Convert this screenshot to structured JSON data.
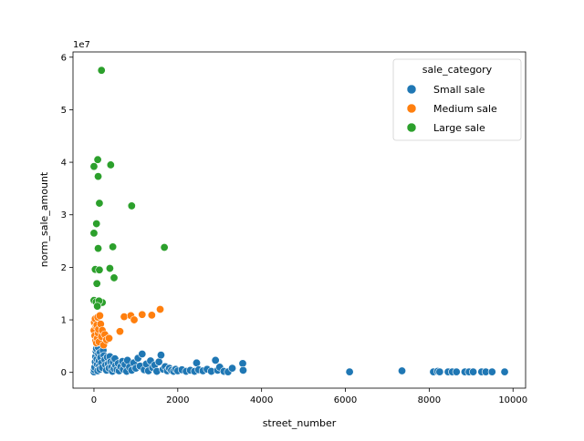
{
  "chart_data": {
    "type": "scatter",
    "xlabel": "street_number",
    "ylabel": "norm_sale_amount",
    "y_scale_label": "1e7",
    "xlim": [
      -500,
      10300
    ],
    "ylim": [
      -3.0,
      61.0
    ],
    "x_ticks": [
      0,
      2000,
      4000,
      6000,
      8000,
      10000
    ],
    "x_tick_labels": [
      "0",
      "2000",
      "4000",
      "6000",
      "8000",
      "10000"
    ],
    "y_ticks": [
      0,
      10,
      20,
      30,
      40,
      50,
      60
    ],
    "y_tick_labels": [
      "0",
      "1",
      "2",
      "3",
      "4",
      "5",
      "6"
    ],
    "grid": false,
    "legend": {
      "title": "sale_category",
      "placement": "top-right",
      "entries": [
        "Small sale",
        "Medium sale",
        "Large sale"
      ]
    },
    "series": [
      {
        "name": "Small sale",
        "color": "#1f77b4",
        "points": [
          [
            0,
            0.1
          ],
          [
            10,
            0.5
          ],
          [
            20,
            1.0
          ],
          [
            30,
            2.0
          ],
          [
            40,
            3.0
          ],
          [
            50,
            4.0
          ],
          [
            60,
            4.5
          ],
          [
            70,
            2.5
          ],
          [
            80,
            1.5
          ],
          [
            90,
            0.3
          ],
          [
            100,
            4.8
          ],
          [
            110,
            3.5
          ],
          [
            120,
            2.2
          ],
          [
            130,
            1.2
          ],
          [
            140,
            0.6
          ],
          [
            150,
            3.8
          ],
          [
            160,
            2.8
          ],
          [
            180,
            1.8
          ],
          [
            200,
            0.9
          ],
          [
            220,
            4.2
          ],
          [
            240,
            3.2
          ],
          [
            260,
            2.4
          ],
          [
            280,
            1.4
          ],
          [
            300,
            0.4
          ],
          [
            320,
            2.9
          ],
          [
            340,
            1.6
          ],
          [
            360,
            0.8
          ],
          [
            380,
            3.0
          ],
          [
            400,
            2.0
          ],
          [
            420,
            1.0
          ],
          [
            440,
            0.2
          ],
          [
            460,
            1.9
          ],
          [
            480,
            0.7
          ],
          [
            500,
            2.6
          ],
          [
            520,
            1.3
          ],
          [
            550,
            0.5
          ],
          [
            580,
            1.7
          ],
          [
            600,
            0.3
          ],
          [
            640,
            1.1
          ],
          [
            680,
            2.1
          ],
          [
            700,
            0.6
          ],
          [
            740,
            1.5
          ],
          [
            780,
            0.2
          ],
          [
            800,
            2.3
          ],
          [
            850,
            1.0
          ],
          [
            900,
            0.4
          ],
          [
            950,
            1.8
          ],
          [
            1000,
            0.8
          ],
          [
            1050,
            2.7
          ],
          [
            1100,
            1.2
          ],
          [
            1150,
            3.5
          ],
          [
            1200,
            0.5
          ],
          [
            1250,
            1.6
          ],
          [
            1300,
            0.3
          ],
          [
            1350,
            2.2
          ],
          [
            1400,
            0.9
          ],
          [
            1450,
            1.4
          ],
          [
            1500,
            0.2
          ],
          [
            1550,
            2.0
          ],
          [
            1600,
            3.3
          ],
          [
            1650,
            0.6
          ],
          [
            1700,
            1.1
          ],
          [
            1750,
            0.3
          ],
          [
            1800,
            0.8
          ],
          [
            1850,
            0.4
          ],
          [
            1900,
            0.2
          ],
          [
            1950,
            0.6
          ],
          [
            2000,
            0.3
          ],
          [
            2100,
            0.5
          ],
          [
            2200,
            0.2
          ],
          [
            2300,
            0.4
          ],
          [
            2400,
            0.2
          ],
          [
            2450,
            1.8
          ],
          [
            2500,
            0.5
          ],
          [
            2600,
            0.3
          ],
          [
            2700,
            0.6
          ],
          [
            2800,
            0.2
          ],
          [
            2900,
            2.3
          ],
          [
            2950,
            0.4
          ],
          [
            3000,
            1.0
          ],
          [
            3100,
            0.2
          ],
          [
            3200,
            0.1
          ],
          [
            3300,
            0.8
          ],
          [
            3550,
            1.7
          ],
          [
            3560,
            0.4
          ],
          [
            6100,
            0.1
          ],
          [
            7350,
            0.3
          ],
          [
            8100,
            0.1
          ],
          [
            8200,
            0.2
          ],
          [
            8250,
            0.1
          ],
          [
            8450,
            0.1
          ],
          [
            8550,
            0.1
          ],
          [
            8650,
            0.1
          ],
          [
            8850,
            0.1
          ],
          [
            8950,
            0.1
          ],
          [
            9050,
            0.1
          ],
          [
            9250,
            0.1
          ],
          [
            9350,
            0.1
          ],
          [
            9500,
            0.1
          ],
          [
            9800,
            0.1
          ]
        ]
      },
      {
        "name": "Medium sale",
        "color": "#ff7f0e",
        "points": [
          [
            0,
            8.0
          ],
          [
            10,
            9.5
          ],
          [
            20,
            7.0
          ],
          [
            30,
            10.2
          ],
          [
            40,
            6.0
          ],
          [
            50,
            8.8
          ],
          [
            60,
            5.6
          ],
          [
            70,
            9.0
          ],
          [
            80,
            6.5
          ],
          [
            90,
            10.5
          ],
          [
            100,
            7.5
          ],
          [
            110,
            8.2
          ],
          [
            120,
            5.8
          ],
          [
            140,
            10.8
          ],
          [
            160,
            9.2
          ],
          [
            180,
            6.8
          ],
          [
            200,
            8.0
          ],
          [
            230,
            5.2
          ],
          [
            260,
            7.2
          ],
          [
            300,
            6.2
          ],
          [
            360,
            6.5
          ],
          [
            620,
            7.8
          ],
          [
            720,
            10.6
          ],
          [
            880,
            10.8
          ],
          [
            960,
            10.0
          ],
          [
            1150,
            11.0
          ],
          [
            1380,
            10.9
          ],
          [
            1580,
            12.0
          ]
        ]
      },
      {
        "name": "Large sale",
        "color": "#2ca02c",
        "points": [
          [
            180,
            57.5
          ],
          [
            90,
            40.5
          ],
          [
            0,
            39.2
          ],
          [
            400,
            39.5
          ],
          [
            100,
            37.3
          ],
          [
            130,
            32.2
          ],
          [
            900,
            31.7
          ],
          [
            60,
            28.3
          ],
          [
            0,
            26.5
          ],
          [
            100,
            23.6
          ],
          [
            450,
            23.9
          ],
          [
            1680,
            23.8
          ],
          [
            30,
            19.6
          ],
          [
            380,
            19.8
          ],
          [
            130,
            19.5
          ],
          [
            480,
            18.0
          ],
          [
            70,
            16.9
          ],
          [
            0,
            13.7
          ],
          [
            50,
            13.4
          ],
          [
            200,
            13.3
          ],
          [
            120,
            13.6
          ],
          [
            80,
            12.6
          ]
        ]
      }
    ]
  }
}
